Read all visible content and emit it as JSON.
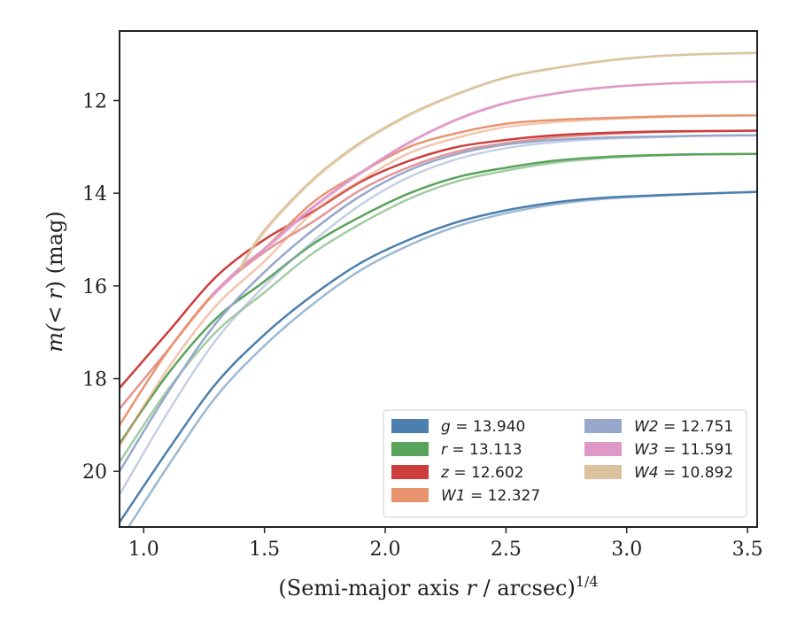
{
  "chart_data": {
    "type": "line",
    "title": "",
    "xlabel_prefix": "(Semi-major axis ",
    "xlabel_var": "r",
    "xlabel_suffix": " / arcsec)",
    "xlabel_power": "1/4",
    "ylabel_prefix": "m(< ",
    "ylabel_var": "r",
    "ylabel_suffix": ") (mag)",
    "xlim": [
      0.9,
      3.54
    ],
    "ylim": [
      21.2,
      10.5
    ],
    "y_inverted": true,
    "xticks": [
      1.0,
      1.5,
      2.0,
      2.5,
      3.0,
      3.5
    ],
    "xtick_labels": [
      "1.0",
      "1.5",
      "2.0",
      "2.5",
      "3.0",
      "3.5"
    ],
    "yticks": [
      12,
      14,
      16,
      18,
      20
    ],
    "ytick_labels": [
      "12",
      "14",
      "16",
      "18",
      "20"
    ],
    "grid": false,
    "legend_position": "lower-right",
    "legend_columns": 2,
    "series": [
      {
        "band": "g",
        "value_text": "= 13.940",
        "color": "#4c7fad",
        "x": [
          0.9,
          1.1,
          1.3,
          1.5,
          1.7,
          1.9,
          2.1,
          2.3,
          2.5,
          2.7,
          2.9,
          3.1,
          3.3,
          3.54
        ],
        "y": [
          21.1,
          19.55,
          18.1,
          17.05,
          16.2,
          15.5,
          15.0,
          14.62,
          14.37,
          14.2,
          14.1,
          14.05,
          14.01,
          13.97
        ],
        "band_offset": 0.4
      },
      {
        "band": "r",
        "value_text": "= 13.113",
        "color": "#59a35a",
        "x": [
          0.9,
          1.1,
          1.3,
          1.5,
          1.7,
          1.9,
          2.1,
          2.3,
          2.5,
          2.7,
          2.9,
          3.1,
          3.3,
          3.54
        ],
        "y": [
          19.4,
          17.9,
          16.7,
          15.9,
          15.1,
          14.5,
          14.0,
          13.65,
          13.45,
          13.3,
          13.22,
          13.18,
          13.16,
          13.15
        ],
        "band_offset": 0.4
      },
      {
        "band": "z",
        "value_text": "= 12.602",
        "color": "#cc3d3d",
        "x": [
          0.9,
          1.1,
          1.3,
          1.5,
          1.7,
          1.9,
          2.1,
          2.3,
          2.5,
          2.7,
          2.9,
          3.1,
          3.3,
          3.54
        ],
        "y": [
          18.2,
          17.0,
          15.8,
          15.0,
          14.4,
          13.75,
          13.3,
          13.0,
          12.85,
          12.75,
          12.7,
          12.67,
          12.66,
          12.65
        ],
        "band_offset": 0.45
      },
      {
        "band": "W1",
        "value_text": "= 12.327",
        "color": "#e8956f",
        "x": [
          0.9,
          1.1,
          1.3,
          1.5,
          1.7,
          1.9,
          2.1,
          2.3,
          2.5,
          2.7,
          2.9,
          3.1,
          3.3,
          3.54
        ],
        "y": [
          19.0,
          17.4,
          16.1,
          15.2,
          14.2,
          13.55,
          13.0,
          12.7,
          12.5,
          12.42,
          12.38,
          12.35,
          12.33,
          12.32
        ],
        "band_offset": 0.45
      },
      {
        "band": "W2",
        "value_text": "= 12.751",
        "color": "#97a8cc",
        "x": [
          0.9,
          1.1,
          1.3,
          1.5,
          1.7,
          1.9,
          2.1,
          2.3,
          2.5,
          2.7,
          2.9,
          3.1,
          3.3,
          3.54
        ],
        "y": [
          20.0,
          18.3,
          16.8,
          15.7,
          14.8,
          14.05,
          13.5,
          13.15,
          12.95,
          12.85,
          12.8,
          12.78,
          12.76,
          12.75
        ],
        "band_offset": 0.5
      },
      {
        "band": "W3",
        "value_text": "= 11.591",
        "color": "#df99c9",
        "x": [
          1.28,
          1.4,
          1.5,
          1.7,
          1.9,
          2.1,
          2.3,
          2.5,
          2.7,
          2.9,
          3.1,
          3.3,
          3.54
        ],
        "y": [
          16.2,
          15.6,
          15.2,
          14.3,
          13.55,
          12.9,
          12.4,
          12.05,
          11.85,
          11.72,
          11.65,
          11.61,
          11.59
        ],
        "band_offset": 0.05
      },
      {
        "band": "W4",
        "value_text": "= 10.892",
        "color": "#dcc39d",
        "x": [
          1.4,
          1.5,
          1.7,
          1.9,
          2.1,
          2.3,
          2.5,
          2.7,
          2.9,
          3.1,
          3.3,
          3.54
        ],
        "y": [
          15.6,
          14.8,
          13.7,
          12.9,
          12.3,
          11.85,
          11.5,
          11.3,
          11.15,
          11.05,
          11.0,
          10.97
        ],
        "band_offset": 0.05
      }
    ]
  }
}
